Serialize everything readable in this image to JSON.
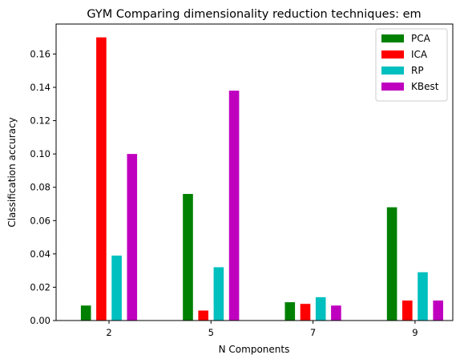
{
  "chart_data": {
    "type": "bar",
    "title": "GYM Comparing dimensionality reduction techniques: em",
    "xlabel": "N Components",
    "ylabel": "Classification accuracy",
    "categories": [
      "2",
      "5",
      "7",
      "9"
    ],
    "ylim": [
      0,
      0.178
    ],
    "yticks": [
      "0.00",
      "0.02",
      "0.04",
      "0.06",
      "0.08",
      "0.10",
      "0.12",
      "0.14",
      "0.16"
    ],
    "legend_position": "top-right",
    "grid": false,
    "series": [
      {
        "name": "PCA",
        "color": "#008000",
        "values": [
          0.009,
          0.076,
          0.011,
          0.068
        ]
      },
      {
        "name": "ICA",
        "color": "#ff0000",
        "values": [
          0.17,
          0.006,
          0.01,
          0.012
        ]
      },
      {
        "name": "RP",
        "color": "#00bfbf",
        "values": [
          0.039,
          0.032,
          0.014,
          0.029
        ]
      },
      {
        "name": "KBest",
        "color": "#bf00bf",
        "values": [
          0.1,
          0.138,
          0.009,
          0.012
        ]
      }
    ]
  }
}
